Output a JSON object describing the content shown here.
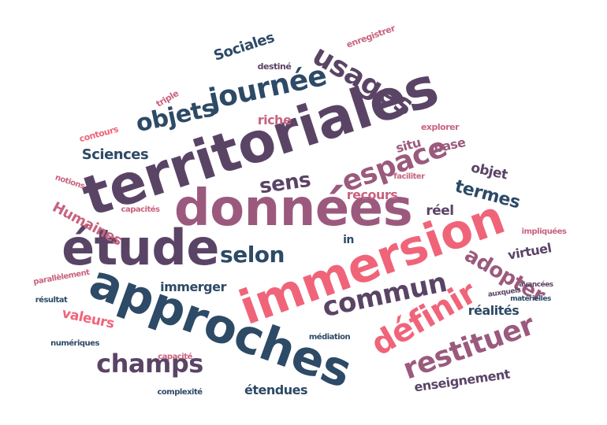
{
  "palette": {
    "navy": "#2d4a66",
    "plum": "#5a4466",
    "mauve": "#9b5a7d",
    "coral": "#f0647a",
    "rose": "#c8637f"
  },
  "words": [
    {
      "text": "territoriales",
      "color": "plum"
    },
    {
      "text": "données",
      "color": "mauve"
    },
    {
      "text": "immersion",
      "color": "coral"
    },
    {
      "text": "approches",
      "color": "navy"
    },
    {
      "text": "étude",
      "color": "plum"
    },
    {
      "text": "usages",
      "color": "plum"
    },
    {
      "text": "journée",
      "color": "navy"
    },
    {
      "text": "objets",
      "color": "navy"
    },
    {
      "text": "espace",
      "color": "mauve"
    },
    {
      "text": "définir",
      "color": "coral"
    },
    {
      "text": "restituer",
      "color": "mauve"
    },
    {
      "text": "commun",
      "color": "plum"
    },
    {
      "text": "champs",
      "color": "plum"
    },
    {
      "text": "selon",
      "color": "navy"
    },
    {
      "text": "sens",
      "color": "plum"
    },
    {
      "text": "adopter",
      "color": "mauve"
    },
    {
      "text": "termes",
      "color": "navy"
    },
    {
      "text": "Sciences",
      "color": "navy"
    },
    {
      "text": "Sociales",
      "color": "navy"
    },
    {
      "text": "Humaines",
      "color": "rose"
    },
    {
      "text": "riche",
      "color": "rose"
    },
    {
      "text": "recours",
      "color": "rose"
    },
    {
      "text": "situ",
      "color": "mauve"
    },
    {
      "text": "base",
      "color": "mauve"
    },
    {
      "text": "objet",
      "color": "plum"
    },
    {
      "text": "réel",
      "color": "plum"
    },
    {
      "text": "in",
      "color": "navy"
    },
    {
      "text": "virtuel",
      "color": "plum"
    },
    {
      "text": "immerger",
      "color": "navy"
    },
    {
      "text": "valeurs",
      "color": "coral"
    },
    {
      "text": "réalités",
      "color": "navy"
    },
    {
      "text": "étendues",
      "color": "navy"
    },
    {
      "text": "enseignement",
      "color": "plum"
    },
    {
      "text": "enregistrer",
      "color": "rose"
    },
    {
      "text": "destiné",
      "color": "plum"
    },
    {
      "text": "triple",
      "color": "rose"
    },
    {
      "text": "contours",
      "color": "coral"
    },
    {
      "text": "explorer",
      "color": "rose"
    },
    {
      "text": "faciliter",
      "color": "rose"
    },
    {
      "text": "notions",
      "color": "rose"
    },
    {
      "text": "capacités",
      "color": "rose"
    },
    {
      "text": "impliquées",
      "color": "rose"
    },
    {
      "text": "parallèlement",
      "color": "rose"
    },
    {
      "text": "auxquels",
      "color": "plum"
    },
    {
      "text": "avancées",
      "color": "plum"
    },
    {
      "text": "résultat",
      "color": "navy"
    },
    {
      "text": "matérielles",
      "color": "navy"
    },
    {
      "text": "médiation",
      "color": "navy"
    },
    {
      "text": "numériques",
      "color": "navy"
    },
    {
      "text": "capacité",
      "color": "rose"
    },
    {
      "text": "complexité",
      "color": "navy"
    }
  ]
}
